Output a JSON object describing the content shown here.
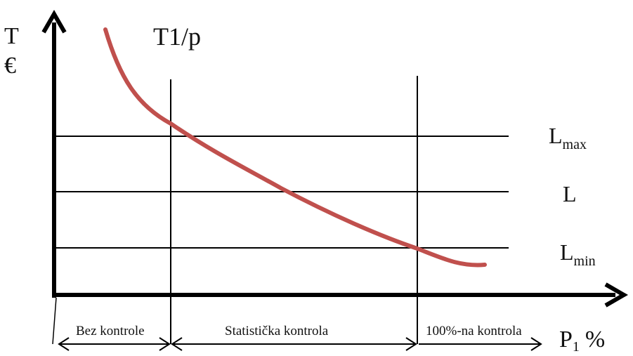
{
  "axes": {
    "y_label_line1": "T",
    "y_label_line2": "€",
    "x_label_main": "P",
    "x_label_sub": "1",
    "x_label_unit": "%"
  },
  "curve_label": "T1/p",
  "levels": {
    "lmax": {
      "main": "L",
      "sub": "max"
    },
    "l": {
      "main": "L"
    },
    "lmin": {
      "main": "L",
      "sub": "min"
    }
  },
  "regions": [
    {
      "label": "Bez kontrole"
    },
    {
      "label": "Statistička kontrola"
    },
    {
      "label": "100%-na kontrola"
    }
  ],
  "colors": {
    "curve": "#c0504d",
    "lines": "#000000"
  }
}
